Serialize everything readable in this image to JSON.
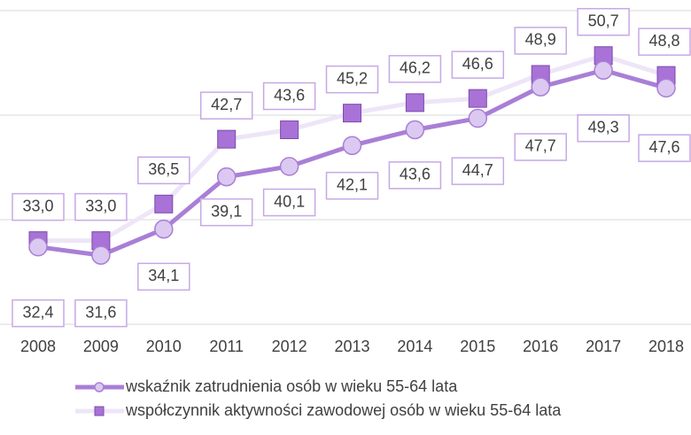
{
  "chart_data": {
    "type": "line",
    "categories": [
      "2008",
      "2009",
      "2010",
      "2011",
      "2012",
      "2013",
      "2014",
      "2015",
      "2016",
      "2017",
      "2018"
    ],
    "series": [
      {
        "name": "wskaźnik zatrudnienia osób w wieku 55-64 lata",
        "color": "#a97fd6",
        "marker": "circle",
        "marker_color": "#dcc9f1",
        "values": [
          32.4,
          31.6,
          34.1,
          39.1,
          40.1,
          42.1,
          43.6,
          44.7,
          47.7,
          49.3,
          47.6
        ],
        "value_labels": [
          "32,4",
          "31,6",
          "34,1",
          "39,1",
          "40,1",
          "42,1",
          "43,6",
          "44,7",
          "47,7",
          "49,3",
          "47,6"
        ]
      },
      {
        "name": "współczynnik aktywności zawodowej osób w wieku 55-64 lata",
        "color": "#eee5f8",
        "marker": "square",
        "marker_color": "#a872d6",
        "values": [
          33.0,
          33.0,
          36.5,
          42.7,
          43.6,
          45.2,
          46.2,
          46.6,
          48.9,
          50.7,
          48.8
        ],
        "value_labels": [
          "33,0",
          "33,0",
          "36,5",
          "42,7",
          "43,6",
          "45,2",
          "46,2",
          "46,6",
          "48,9",
          "50,7",
          "48,8"
        ]
      }
    ],
    "ylim": [
      25,
      55
    ],
    "yticks": [
      25,
      35,
      45,
      55
    ],
    "grid": true,
    "legend": "bottom"
  }
}
